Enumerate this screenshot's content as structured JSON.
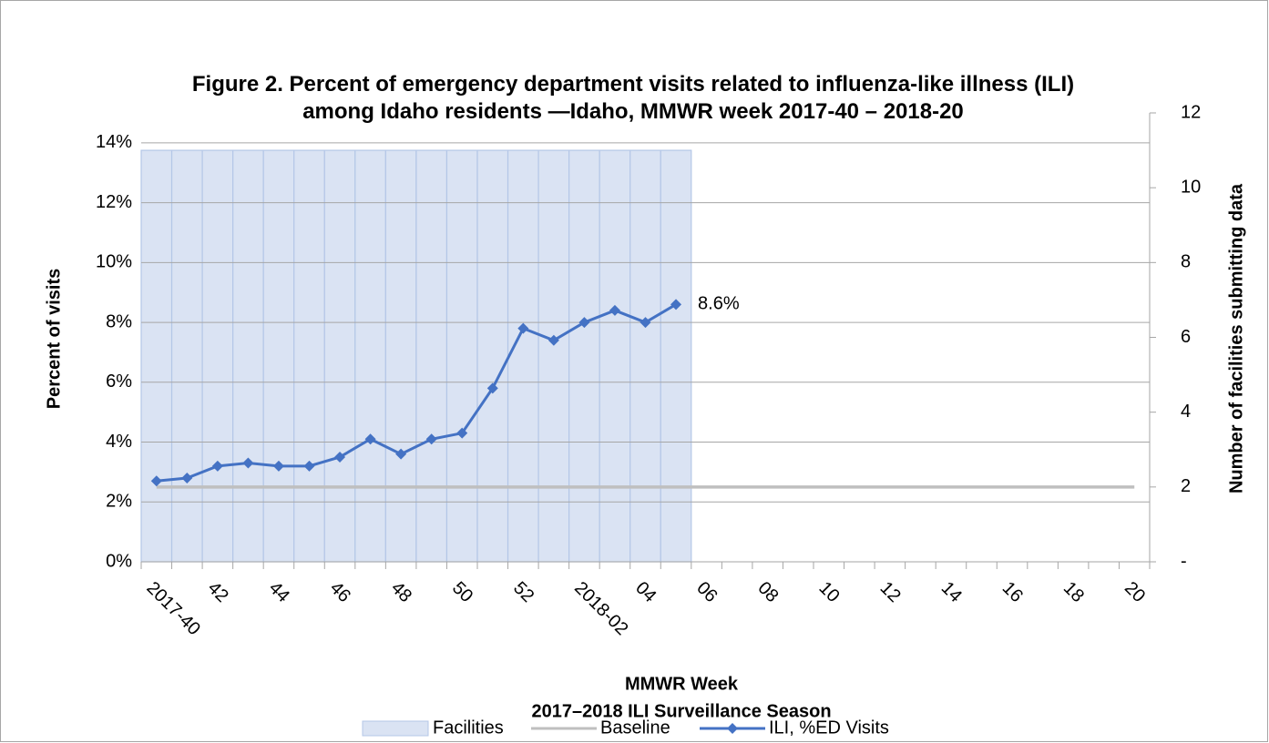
{
  "chart_data": {
    "type": "combo",
    "title": "Figure 2. Percent of emergency department visits related to influenza-like illness (ILI) among Idaho residents —Idaho, MMWR week 2017-40 – 2018-20",
    "x_label": "MMWR Week",
    "x_sublabel": "2017–2018 ILI Surveillance Season",
    "y_label": "Percent of visits",
    "y2_label": "Number of facilities submitting data",
    "categories": [
      "2017-40",
      null,
      "42",
      null,
      "44",
      null,
      "46",
      null,
      "48",
      null,
      "50",
      null,
      "52",
      null,
      "2018-02",
      null,
      "04",
      null,
      "06",
      null,
      "08",
      null,
      "10",
      null,
      "12",
      null,
      "14",
      null,
      "16",
      null,
      "18",
      null,
      "20"
    ],
    "series": [
      {
        "name": "Facilities",
        "type": "bar",
        "axis": "y2",
        "color": "#dae3f3",
        "edge_color": "#b4c7e7",
        "values": [
          11,
          11,
          11,
          11,
          11,
          11,
          11,
          11,
          11,
          11,
          11,
          11,
          11,
          11,
          11,
          11,
          11,
          11,
          null,
          null,
          null,
          null,
          null,
          null,
          null,
          null,
          null,
          null,
          null,
          null,
          null,
          null,
          null
        ]
      },
      {
        "name": "Baseline",
        "type": "line",
        "color": "#bfbfbf",
        "values": [
          2.5,
          2.5,
          2.5,
          2.5,
          2.5,
          2.5,
          2.5,
          2.5,
          2.5,
          2.5,
          2.5,
          2.5,
          2.5,
          2.5,
          2.5,
          2.5,
          2.5,
          2.5,
          2.5,
          2.5,
          2.5,
          2.5,
          2.5,
          2.5,
          2.5,
          2.5,
          2.5,
          2.5,
          2.5,
          2.5,
          2.5,
          2.5,
          2.5
        ]
      },
      {
        "name": "ILI, %ED Visits",
        "type": "line",
        "marker": "diamond",
        "color": "#4472c4",
        "values": [
          2.7,
          2.8,
          3.2,
          3.3,
          3.2,
          3.2,
          3.5,
          4.1,
          3.6,
          4.1,
          4.3,
          5.8,
          7.8,
          7.4,
          8.0,
          8.4,
          8.0,
          8.6,
          null,
          null,
          null,
          null,
          null,
          null,
          null,
          null,
          null,
          null,
          null,
          null,
          null,
          null,
          null
        ],
        "value_labels": [
          null,
          null,
          null,
          null,
          null,
          null,
          null,
          null,
          null,
          null,
          null,
          null,
          null,
          null,
          null,
          null,
          null,
          "8.6%",
          null,
          null,
          null,
          null,
          null,
          null,
          null,
          null,
          null,
          null,
          null,
          null,
          null,
          null,
          null
        ]
      }
    ],
    "ylim": [
      0,
      15
    ],
    "yticks": [
      {
        "value": 0,
        "label": "0%"
      },
      {
        "value": 2,
        "label": "2%"
      },
      {
        "value": 4,
        "label": "4%"
      },
      {
        "value": 6,
        "label": "6%"
      },
      {
        "value": 8,
        "label": "8%"
      },
      {
        "value": 10,
        "label": "10%"
      },
      {
        "value": 12,
        "label": "12%"
      },
      {
        "value": 14,
        "label": "14%"
      }
    ],
    "y2lim": [
      0,
      12
    ],
    "y2ticks": [
      {
        "value": 0,
        "label": "-"
      },
      2,
      4,
      6,
      8,
      10,
      12
    ],
    "grid": true,
    "legend": "bottom"
  }
}
